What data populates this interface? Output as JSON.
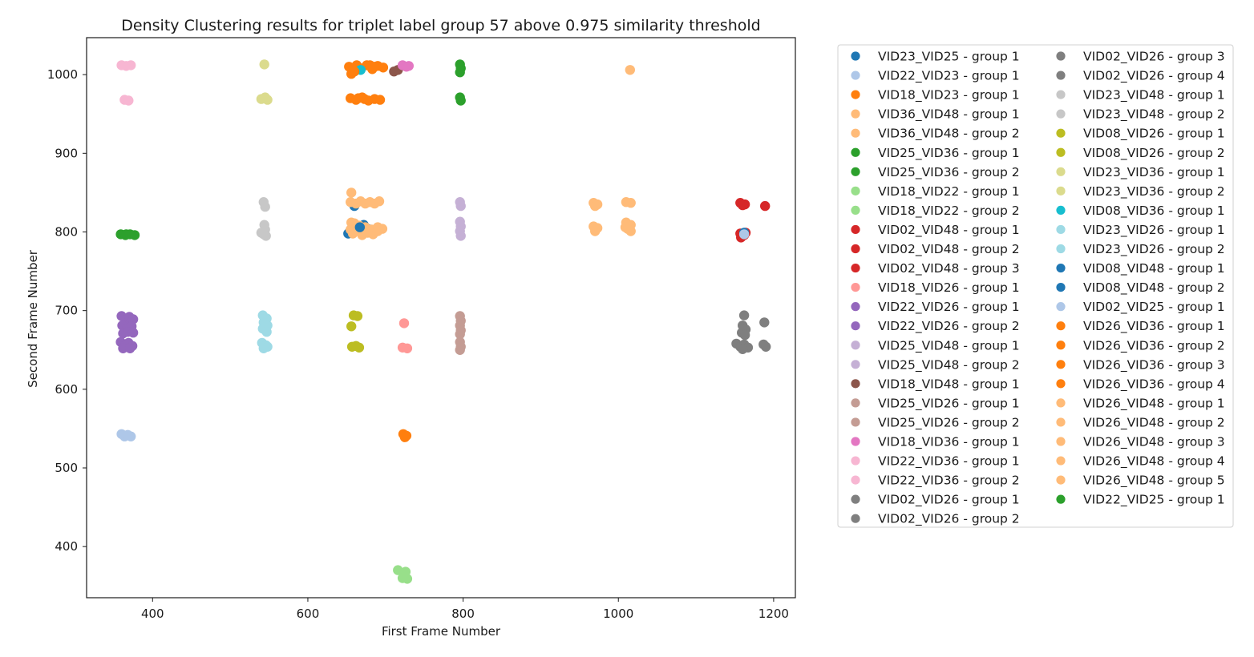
{
  "chart_data": {
    "type": "scatter",
    "title": "Density Clustering results for triplet label group 57 above 0.975 similarity threshold",
    "xlabel": "First Frame Number",
    "ylabel": "Second Frame Number",
    "xlim": [
      315,
      1228
    ],
    "ylim": [
      335,
      1047
    ],
    "xticks": [
      400,
      600,
      800,
      1000,
      1200
    ],
    "yticks": [
      400,
      500,
      600,
      700,
      800,
      900,
      1000
    ],
    "grid": false,
    "legend_position": "outside-right",
    "legend_columns": 2,
    "series": [
      {
        "name": "VID23_VID25 - group 1",
        "color": "#1f77b4",
        "points": [
          [
            652,
            798
          ],
          [
            657,
            803
          ],
          [
            662,
            806
          ],
          [
            667,
            801
          ],
          [
            672,
            809
          ],
          [
            677,
            804
          ],
          [
            670,
            799
          ],
          [
            660,
            833
          ]
        ]
      },
      {
        "name": "VID22_VID23 - group 1",
        "color": "#aec7e8",
        "points": [
          [
            360,
            543
          ],
          [
            364,
            540
          ],
          [
            368,
            542
          ],
          [
            372,
            540
          ]
        ]
      },
      {
        "name": "VID18_VID23 - group 1",
        "color": "#ff7f0e",
        "points": [
          [
            653,
            1010
          ],
          [
            658,
            1006
          ],
          [
            663,
            1012
          ],
          [
            668,
            1008
          ],
          [
            676,
            1012
          ],
          [
            683,
            1007
          ],
          [
            690,
            1011
          ],
          [
            697,
            1009
          ],
          [
            656,
            1001
          ],
          [
            655,
            970
          ],
          [
            662,
            968
          ],
          [
            670,
            971
          ],
          [
            678,
            967
          ],
          [
            686,
            969
          ],
          [
            693,
            968
          ]
        ]
      },
      {
        "name": "VID36_VID48 - group 1",
        "color": "#ffbb78",
        "points": [
          [
            655,
            838
          ],
          [
            662,
            836
          ],
          [
            668,
            839
          ],
          [
            674,
            836
          ],
          [
            680,
            838
          ],
          [
            686,
            836
          ],
          [
            692,
            839
          ],
          [
            656,
            850
          ],
          [
            655,
            803
          ],
          [
            660,
            811
          ],
          [
            666,
            808
          ],
          [
            674,
            806
          ],
          [
            682,
            803
          ],
          [
            690,
            806
          ],
          [
            696,
            804
          ]
        ]
      },
      {
        "name": "VID36_VID48 - group 2",
        "color": "#ffbb78",
        "points": [
          [
            658,
            798
          ],
          [
            664,
            802
          ],
          [
            670,
            796
          ],
          [
            677,
            799
          ],
          [
            684,
            797
          ],
          [
            690,
            801
          ],
          [
            656,
            812
          ]
        ]
      },
      {
        "name": "VID25_VID36 - group 1",
        "color": "#2ca02c",
        "points": [
          [
            796,
            1013
          ],
          [
            797,
            1008
          ],
          [
            796,
            1003
          ],
          [
            796,
            971
          ],
          [
            797,
            967
          ]
        ]
      },
      {
        "name": "VID25_VID36 - group 2",
        "color": "#2ca02c",
        "points": [
          [
            359,
            797
          ],
          [
            365,
            796
          ],
          [
            371,
            797
          ],
          [
            377,
            796
          ]
        ]
      },
      {
        "name": "VID18_VID22 - group 1",
        "color": "#98df8a",
        "points": [
          [
            716,
            370
          ],
          [
            726,
            368
          ]
        ]
      },
      {
        "name": "VID18_VID22 - group 2",
        "color": "#98df8a",
        "points": [
          [
            722,
            360
          ],
          [
            728,
            359
          ]
        ]
      },
      {
        "name": "VID02_VID48 - group 1",
        "color": "#d62728",
        "points": [
          [
            1157,
            837
          ],
          [
            1163,
            835
          ],
          [
            1160,
            834
          ]
        ]
      },
      {
        "name": "VID02_VID48 - group 2",
        "color": "#d62728",
        "points": [
          [
            1157,
            798
          ],
          [
            1162,
            796
          ],
          [
            1158,
            793
          ],
          [
            1164,
            799
          ]
        ]
      },
      {
        "name": "VID02_VID48 - group 3",
        "color": "#d62728",
        "points": [
          [
            1189,
            833
          ]
        ]
      },
      {
        "name": "VID18_VID26 - group 1",
        "color": "#ff9896",
        "points": [
          [
            724,
            684
          ],
          [
            722,
            653
          ],
          [
            728,
            652
          ]
        ]
      },
      {
        "name": "VID22_VID26 - group 1",
        "color": "#9467bd",
        "points": [
          [
            360,
            693
          ],
          [
            365,
            688
          ],
          [
            370,
            692
          ],
          [
            375,
            689
          ],
          [
            361,
            681
          ],
          [
            367,
            677
          ],
          [
            373,
            680
          ],
          [
            362,
            671
          ],
          [
            368,
            673
          ],
          [
            375,
            672
          ]
        ]
      },
      {
        "name": "VID22_VID26 - group 2",
        "color": "#9467bd",
        "points": [
          [
            359,
            660
          ],
          [
            364,
            655
          ],
          [
            369,
            659
          ],
          [
            374,
            655
          ],
          [
            362,
            652
          ],
          [
            371,
            652
          ]
        ]
      },
      {
        "name": "VID25_VID48 - group 1",
        "color": "#c5b0d5",
        "points": [
          [
            796,
            838
          ],
          [
            797,
            833
          ]
        ]
      },
      {
        "name": "VID25_VID48 - group 2",
        "color": "#c5b0d5",
        "points": [
          [
            796,
            813
          ],
          [
            797,
            807
          ],
          [
            796,
            801
          ],
          [
            797,
            795
          ]
        ]
      },
      {
        "name": "VID18_VID48 - group 1",
        "color": "#8c564b",
        "points": [
          [
            711,
            1004
          ],
          [
            716,
            1006
          ]
        ]
      },
      {
        "name": "VID25_VID26 - group 1",
        "color": "#c49c94",
        "points": [
          [
            796,
            693
          ],
          [
            797,
            687
          ],
          [
            796,
            681
          ],
          [
            797,
            675
          ],
          [
            796,
            670
          ]
        ]
      },
      {
        "name": "VID25_VID26 - group 2",
        "color": "#c49c94",
        "points": [
          [
            796,
            660
          ],
          [
            797,
            654
          ],
          [
            796,
            650
          ]
        ]
      },
      {
        "name": "VID18_VID36 - group 1",
        "color": "#e377c2",
        "points": [
          [
            722,
            1012
          ],
          [
            727,
            1010
          ],
          [
            730,
            1011
          ]
        ]
      },
      {
        "name": "VID22_VID36 - group 1",
        "color": "#f7b6d2",
        "points": [
          [
            360,
            1012
          ],
          [
            366,
            1011
          ],
          [
            372,
            1012
          ]
        ]
      },
      {
        "name": "VID22_VID36 - group 2",
        "color": "#f7b6d2",
        "points": [
          [
            364,
            968
          ],
          [
            369,
            967
          ]
        ]
      },
      {
        "name": "VID02_VID26 - group 1",
        "color": "#7f7f7f",
        "points": [
          [
            1152,
            658
          ],
          [
            1157,
            654
          ],
          [
            1162,
            657
          ],
          [
            1167,
            653
          ],
          [
            1160,
            651
          ]
        ]
      },
      {
        "name": "VID02_VID26 - group 2",
        "color": "#7f7f7f",
        "points": [
          [
            1160,
            681
          ],
          [
            1164,
            676
          ],
          [
            1159,
            672
          ],
          [
            1163,
            669
          ]
        ]
      },
      {
        "name": "VID02_VID26 - group 3",
        "color": "#7f7f7f",
        "points": [
          [
            1162,
            694
          ]
        ]
      },
      {
        "name": "VID02_VID26 - group 4",
        "color": "#7f7f7f",
        "points": [
          [
            1188,
            685
          ],
          [
            1187,
            657
          ],
          [
            1190,
            654
          ]
        ]
      },
      {
        "name": "VID23_VID48 - group 1",
        "color": "#c7c7c7",
        "points": [
          [
            543,
            838
          ],
          [
            545,
            832
          ]
        ]
      },
      {
        "name": "VID23_VID48 - group 2",
        "color": "#c7c7c7",
        "points": [
          [
            544,
            809
          ],
          [
            545,
            803
          ],
          [
            543,
            797
          ],
          [
            546,
            795
          ],
          [
            540,
            799
          ]
        ]
      },
      {
        "name": "VID08_VID26 - group 1",
        "color": "#bcbd22",
        "points": [
          [
            659,
            694
          ],
          [
            664,
            693
          ]
        ]
      },
      {
        "name": "VID08_VID26 - group 2",
        "color": "#bcbd22",
        "points": [
          [
            656,
            680
          ],
          [
            657,
            654
          ],
          [
            662,
            655
          ],
          [
            666,
            653
          ]
        ]
      },
      {
        "name": "VID23_VID36 - group 1",
        "color": "#dbdb8d",
        "points": [
          [
            544,
            1013
          ]
        ]
      },
      {
        "name": "VID23_VID36 - group 2",
        "color": "#dbdb8d",
        "points": [
          [
            540,
            969
          ],
          [
            545,
            971
          ],
          [
            548,
            968
          ]
        ]
      },
      {
        "name": "VID08_VID36 - group 1",
        "color": "#17becf",
        "points": [
          [
            668,
            1006
          ]
        ]
      },
      {
        "name": "VID23_VID26 - group 1",
        "color": "#9edae5",
        "points": [
          [
            542,
            694
          ],
          [
            547,
            690
          ],
          [
            543,
            685
          ],
          [
            548,
            681
          ],
          [
            542,
            677
          ],
          [
            547,
            673
          ]
        ]
      },
      {
        "name": "VID23_VID26 - group 2",
        "color": "#9edae5",
        "points": [
          [
            541,
            659
          ],
          [
            546,
            656
          ],
          [
            543,
            652
          ],
          [
            548,
            654
          ]
        ]
      },
      {
        "name": "VID08_VID48 - group 1",
        "color": "#1f77b4",
        "points": [
          [
            1162,
            799
          ]
        ]
      },
      {
        "name": "VID08_VID48 - group 2",
        "color": "#1f77b4",
        "points": [
          [
            667,
            806
          ]
        ]
      },
      {
        "name": "VID02_VID25 - group 1",
        "color": "#aec7e8",
        "points": [
          [
            1162,
            797
          ]
        ]
      },
      {
        "name": "VID26_VID36 - group 1",
        "color": "#ff7f0e",
        "points": [
          [
            723,
            543
          ],
          [
            727,
            541
          ],
          [
            725,
            539
          ]
        ]
      },
      {
        "name": "VID26_VID36 - group 2",
        "color": "#ff7f0e",
        "points": [
          [
            680,
            1012
          ],
          [
            686,
            1010
          ]
        ]
      },
      {
        "name": "VID26_VID36 - group 3",
        "color": "#ff7f0e",
        "points": [
          [
            665,
            970
          ],
          [
            673,
            969
          ]
        ]
      },
      {
        "name": "VID26_VID36 - group 4",
        "color": "#ff7f0e",
        "points": [
          [
            660,
            1004
          ]
        ]
      },
      {
        "name": "VID26_VID48 - group 1",
        "color": "#ffbb78",
        "points": [
          [
            968,
            837
          ],
          [
            973,
            835
          ],
          [
            970,
            833
          ]
        ]
      },
      {
        "name": "VID26_VID48 - group 2",
        "color": "#ffbb78",
        "points": [
          [
            968,
            807
          ],
          [
            973,
            805
          ],
          [
            970,
            801
          ]
        ]
      },
      {
        "name": "VID26_VID48 - group 3",
        "color": "#ffbb78",
        "points": [
          [
            1010,
            838
          ],
          [
            1016,
            837
          ]
        ]
      },
      {
        "name": "VID26_VID48 - group 4",
        "color": "#ffbb78",
        "points": [
          [
            1010,
            812
          ],
          [
            1016,
            809
          ],
          [
            1012,
            804
          ],
          [
            1016,
            801
          ],
          [
            1009,
            806
          ]
        ]
      },
      {
        "name": "VID26_VID48 - group 5",
        "color": "#ffbb78",
        "points": [
          [
            1015,
            1006
          ]
        ]
      },
      {
        "name": "VID22_VID25 - group 1",
        "color": "#2ca02c",
        "points": [
          [
            366,
            797
          ]
        ]
      }
    ]
  }
}
